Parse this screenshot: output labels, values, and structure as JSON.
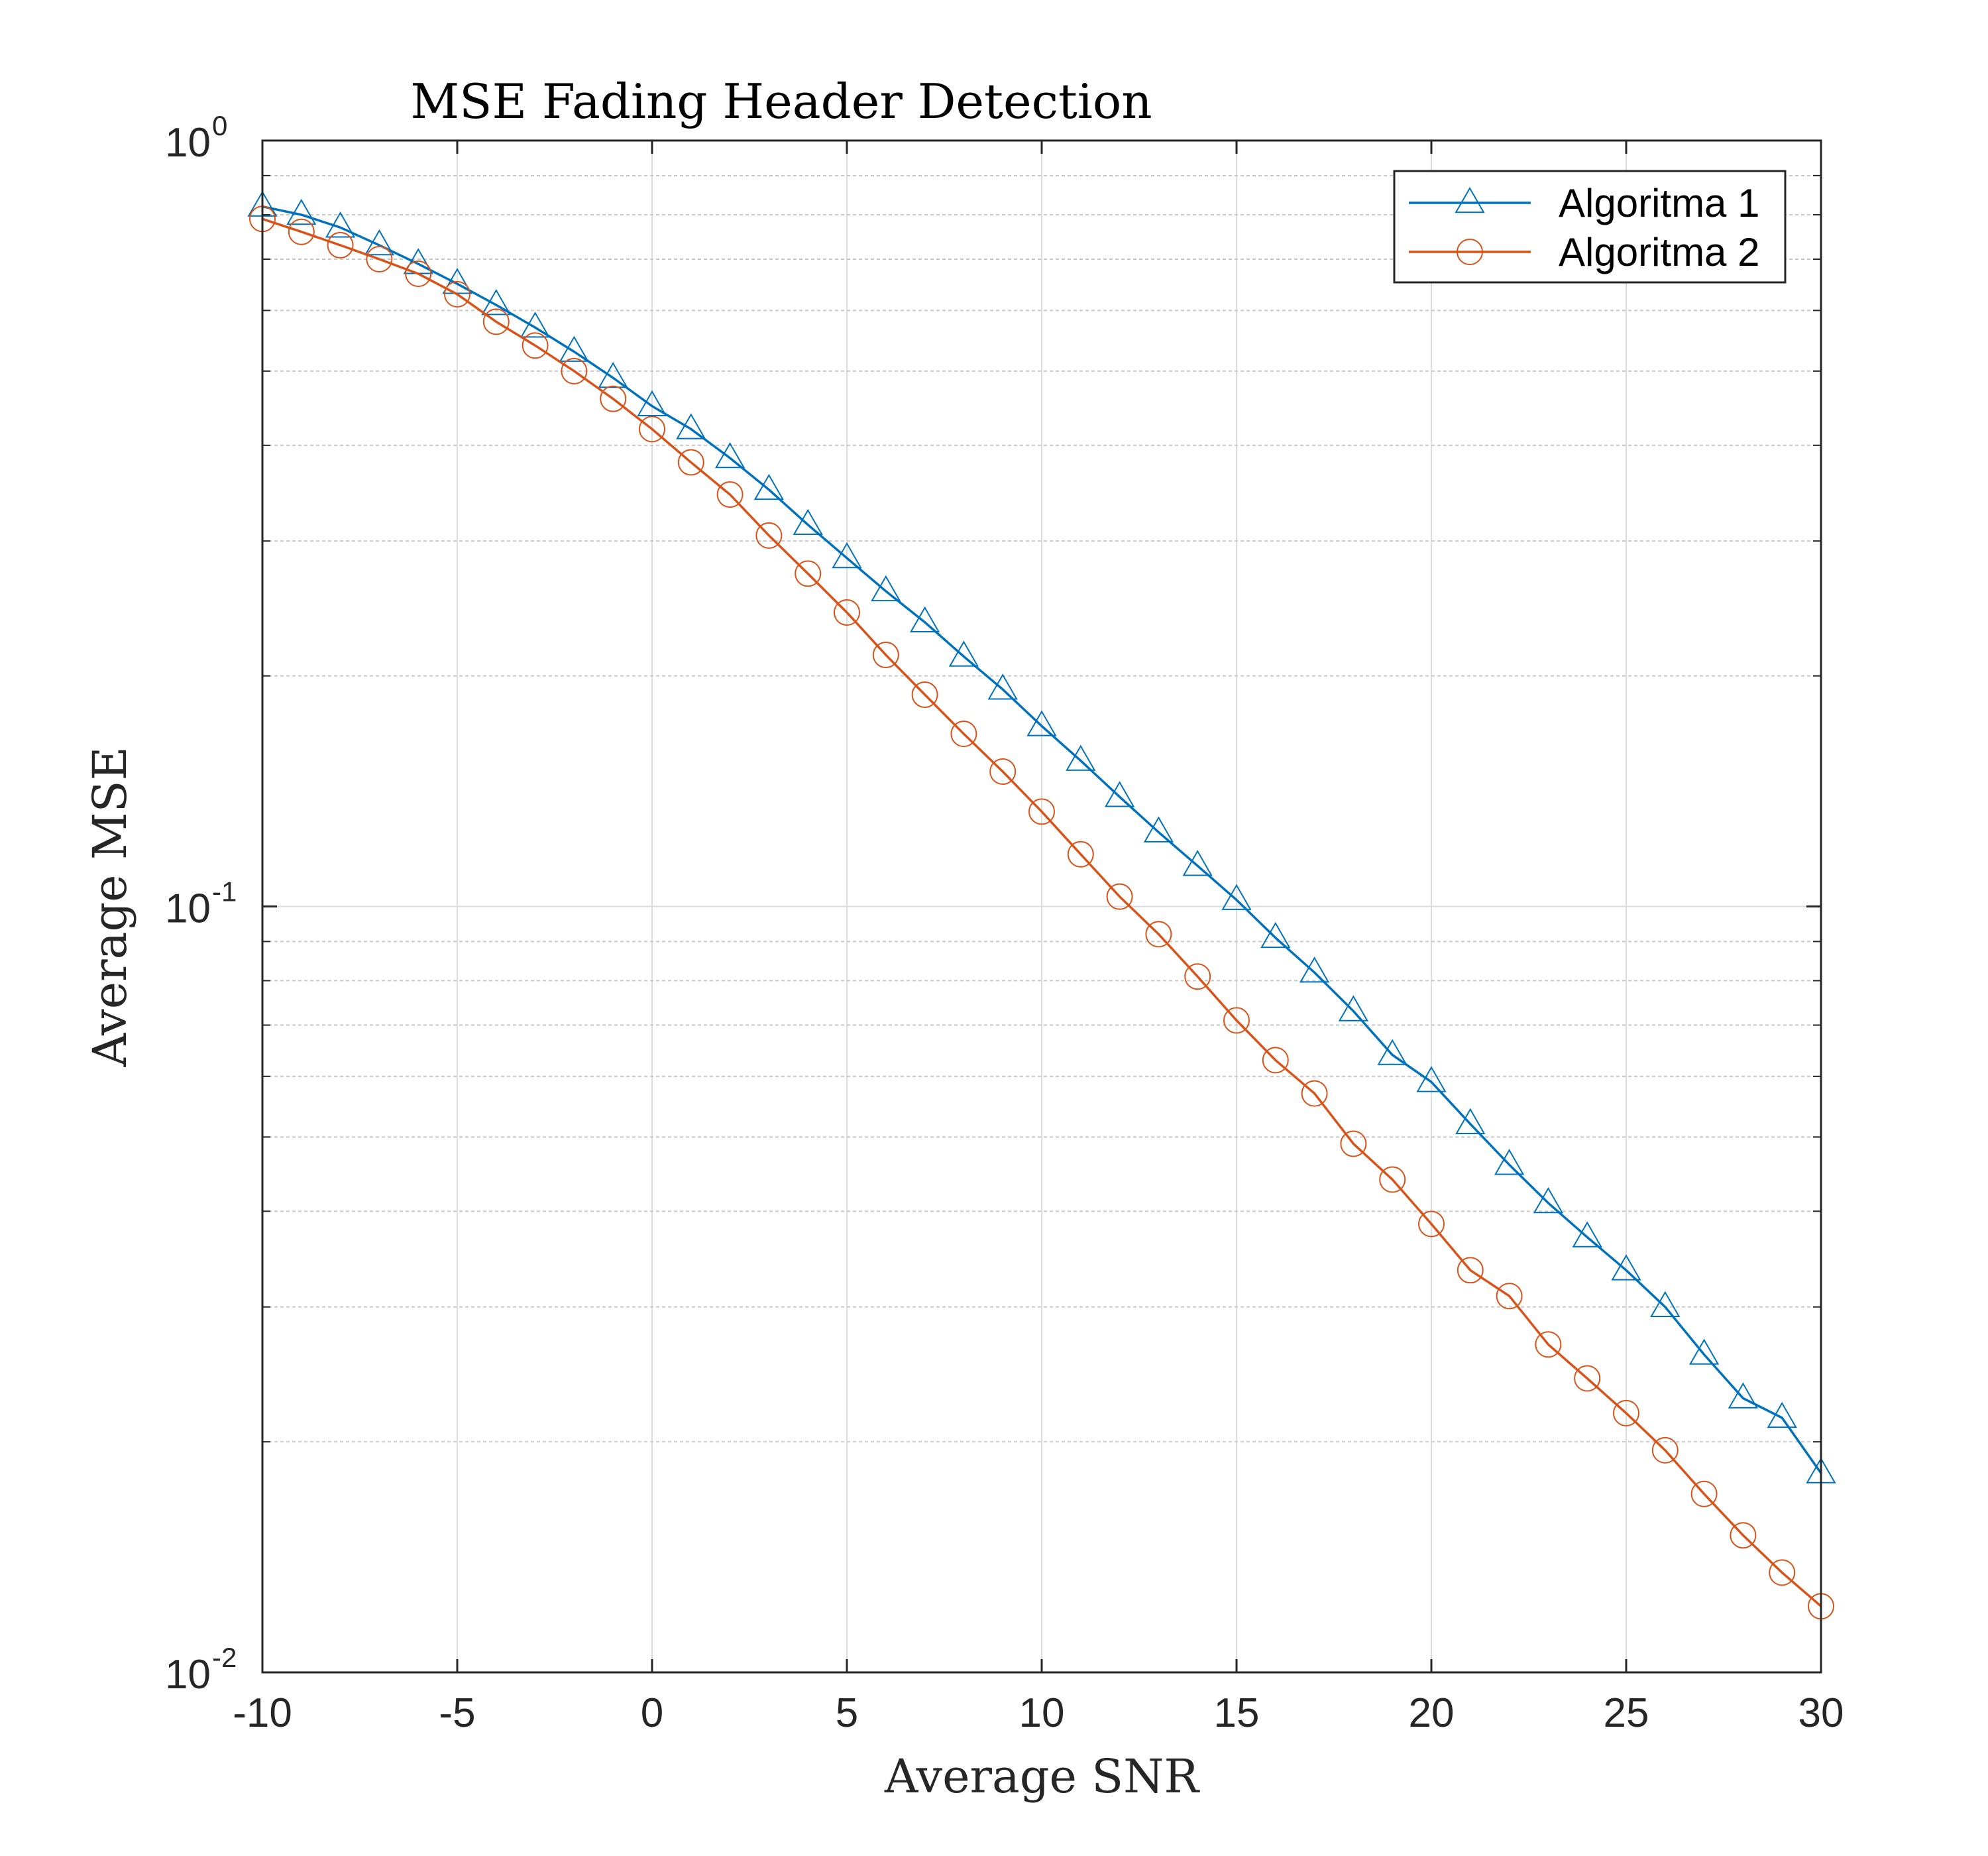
{
  "chart_data": {
    "type": "line",
    "title": "MSE Fading Header Detection",
    "xlabel": "Average SNR",
    "ylabel": "Average MSE",
    "xlim": [
      -10,
      30
    ],
    "ylim": [
      0.01,
      1
    ],
    "yscale": "log",
    "grid": true,
    "legend_position": "top-right",
    "x": [
      -10,
      -9,
      -8,
      -7,
      -6,
      -5,
      -4,
      -3,
      -2,
      -1,
      0,
      1,
      2,
      3,
      4,
      5,
      6,
      7,
      8,
      9,
      10,
      11,
      12,
      13,
      14,
      15,
      16,
      17,
      18,
      19,
      20,
      21,
      22,
      23,
      24,
      25,
      26,
      27,
      28,
      29,
      30
    ],
    "x_ticks": [
      -10,
      -5,
      0,
      5,
      10,
      15,
      20,
      25,
      30
    ],
    "x_tick_labels": [
      "-10",
      "-5",
      "0",
      "5",
      "10",
      "15",
      "20",
      "25",
      "30"
    ],
    "y_ticks": [
      {
        "value": 1,
        "base": "10",
        "exp": "0"
      },
      {
        "value": 0.1,
        "base": "10",
        "exp": "-1"
      },
      {
        "value": 0.01,
        "base": "10",
        "exp": "-2"
      }
    ],
    "series": [
      {
        "name": "Algoritma 1",
        "color": "#0072BD",
        "marker": "triangle",
        "values": [
          0.82,
          0.8,
          0.77,
          0.73,
          0.69,
          0.65,
          0.61,
          0.57,
          0.53,
          0.49,
          0.45,
          0.42,
          0.385,
          0.35,
          0.315,
          0.285,
          0.258,
          0.235,
          0.212,
          0.192,
          0.172,
          0.155,
          0.139,
          0.125,
          0.113,
          0.102,
          0.091,
          0.082,
          0.073,
          0.064,
          0.059,
          0.052,
          0.046,
          0.041,
          0.037,
          0.0335,
          0.03,
          0.026,
          0.0228,
          0.0215,
          0.0182
        ]
      },
      {
        "name": "Algoritma 2",
        "color": "#D95319",
        "marker": "circle",
        "values": [
          0.79,
          0.76,
          0.73,
          0.7,
          0.67,
          0.63,
          0.58,
          0.54,
          0.5,
          0.46,
          0.42,
          0.38,
          0.345,
          0.305,
          0.272,
          0.242,
          0.213,
          0.189,
          0.168,
          0.15,
          0.133,
          0.117,
          0.103,
          0.092,
          0.081,
          0.071,
          0.063,
          0.057,
          0.049,
          0.044,
          0.0385,
          0.0335,
          0.031,
          0.0268,
          0.0242,
          0.0218,
          0.0195,
          0.0171,
          0.0151,
          0.0135,
          0.0122
        ]
      }
    ]
  }
}
